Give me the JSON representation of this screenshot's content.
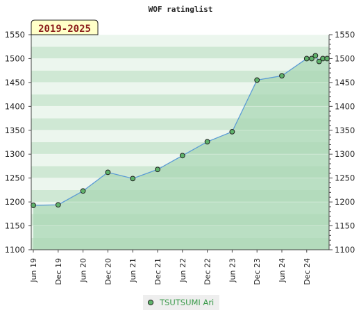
{
  "chart_data": {
    "type": "area",
    "title": "WOF ratinglist",
    "badge": "2019-2025",
    "xlabel": "",
    "ylabel": "",
    "ylim": [
      1100,
      1550
    ],
    "yticks": [
      1100,
      1150,
      1200,
      1250,
      1300,
      1350,
      1400,
      1450,
      1500,
      1550
    ],
    "xticks": [
      "Jun 19",
      "Dec 19",
      "Jun 20",
      "Dec 20",
      "Jun 21",
      "Dec 21",
      "Jun 22",
      "Dec 22",
      "Jun 23",
      "Dec 23",
      "Jun 24",
      "Dec 24"
    ],
    "grid": true,
    "legend_position": "bottom",
    "colors": {
      "line": "#5b9bd5",
      "marker": "#5fb36b",
      "fill_light": "#ecf6ee",
      "fill_mid": "#cfe8d4",
      "fill_dark": "#a9d7b4",
      "legend_text": "#3a9a4a",
      "badge_bg": "#ffffc8"
    },
    "series": [
      {
        "name": "TSUTSUMI Ari",
        "x": [
          0,
          1,
          2,
          3,
          4,
          5,
          6,
          7,
          8,
          9,
          10,
          11,
          11.2,
          11.35,
          11.5,
          11.65,
          11.82
        ],
        "values": [
          1193,
          1194,
          1223,
          1262,
          1249,
          1268,
          1297,
          1326,
          1347,
          1455,
          1464,
          1500,
          1500,
          1506,
          1494,
          1500,
          1500
        ]
      }
    ]
  }
}
